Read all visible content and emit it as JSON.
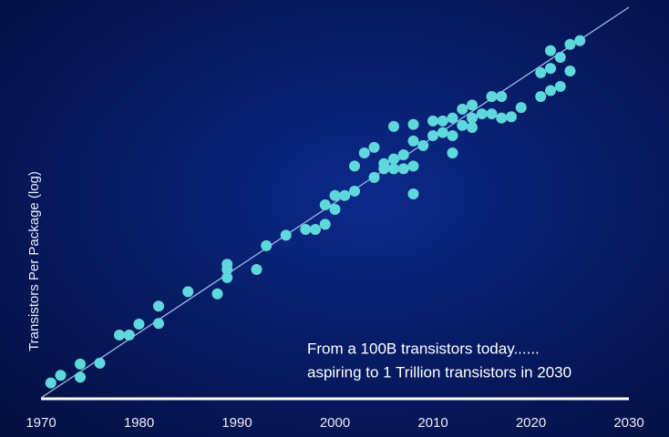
{
  "chart_data": {
    "type": "scatter",
    "y_label": "Transistors Per Package (log)",
    "annotations": [
      "From a 100B transistors today......",
      "aspiring to 1 Trillion transistors in 2030"
    ],
    "log_scale": true,
    "color": "#5fd8dc",
    "xlim": [
      1970,
      2030
    ],
    "xticks": [
      1970,
      1980,
      1990,
      2000,
      2010,
      2020,
      2030
    ],
    "ylim": [
      1000,
      1000000000000
    ],
    "trend_line": {
      "x": [
        1970,
        2030
      ],
      "values": [
        1000,
        1000000000000
      ],
      "color": "#9fb6e8"
    },
    "x": [
      1971,
      1972,
      1974,
      1974,
      1976,
      1978,
      1979,
      1980,
      1982,
      1982,
      1985,
      1988,
      1989,
      1989,
      1989,
      1992,
      1993,
      1995,
      1997,
      1998,
      1999,
      1999,
      2000,
      2000,
      2001,
      2002,
      2002,
      2003,
      2004,
      2004,
      2005,
      2005,
      2006,
      2006,
      2006,
      2007,
      2007,
      2008,
      2008,
      2008,
      2008,
      2009,
      2010,
      2010,
      2011,
      2011,
      2012,
      2012,
      2012,
      2013,
      2013,
      2014,
      2014,
      2014,
      2015,
      2016,
      2016,
      2017,
      2017,
      2018,
      2019,
      2021,
      2021,
      2022,
      2022,
      2022,
      2023,
      2023,
      2024,
      2024,
      2025
    ],
    "values": [
      2200,
      3300,
      6000,
      3000,
      6300,
      28000,
      28000,
      50000,
      130000,
      52000,
      280000,
      250000,
      1200000,
      910000,
      590000,
      910000,
      3200000,
      5600000,
      7600000,
      7600000,
      10000000,
      28000000,
      46000000,
      22000000,
      46000000,
      58000000,
      220000000,
      440000000,
      590000000,
      120000000,
      190000000,
      250000000,
      320000000,
      190000000,
      1800000000,
      400000000,
      190000000,
      830000000,
      2000000000,
      220000000,
      50000000,
      650000000,
      1100000000,
      2400000000,
      2400000000,
      1300000000,
      2800000000,
      1100000000,
      440000000,
      1900000000,
      4500000000,
      5600000000,
      2800000000,
      1700000000,
      3500000000,
      8800000000,
      3500000000,
      8800000000,
      2800000000,
      3000000000,
      4900000000,
      8800000000,
      31000000000,
      100000000000,
      39000000000,
      12000000000,
      70000000000,
      15000000000,
      140000000000,
      34000000000,
      170000000000
    ]
  }
}
